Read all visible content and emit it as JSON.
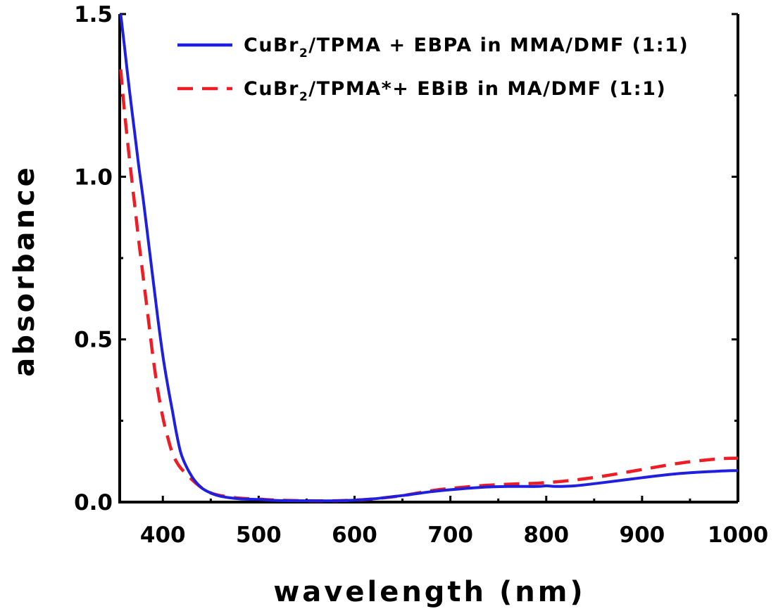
{
  "chart_data": {
    "type": "line",
    "xlabel": "wavelength (nm)",
    "ylabel": "absorbance",
    "xlim": [
      355,
      1000
    ],
    "ylim": [
      0,
      1.5
    ],
    "xticks": [
      400,
      500,
      600,
      700,
      800,
      900,
      1000
    ],
    "xtick_labels": [
      "400",
      "500",
      "600",
      "700",
      "800",
      "900",
      "1000"
    ],
    "yticks": [
      0.0,
      0.5,
      1.0,
      1.5
    ],
    "ytick_labels": [
      "0.0",
      "0.5",
      "1.0",
      "1.5"
    ],
    "grid": false,
    "legend_position": "top-right",
    "series": [
      {
        "name_main": "CuBr",
        "name_sub": "2",
        "name_rest": "/TPMA + EBPA in MMA/DMF (1:1)",
        "color": "#1f1fe0",
        "style": "solid",
        "x": [
          356,
          360,
          365,
          370,
          375,
          380,
          385,
          390,
          395,
          400,
          405,
          410,
          415,
          420,
          430,
          440,
          450,
          460,
          480,
          500,
          520,
          550,
          580,
          600,
          620,
          650,
          680,
          700,
          730,
          760,
          790,
          800,
          810,
          830,
          860,
          900,
          940,
          980,
          1000
        ],
        "y": [
          1.5,
          1.4,
          1.27,
          1.15,
          1.03,
          0.92,
          0.8,
          0.68,
          0.56,
          0.45,
          0.36,
          0.28,
          0.2,
          0.14,
          0.08,
          0.045,
          0.028,
          0.018,
          0.01,
          0.008,
          0.005,
          0.004,
          0.004,
          0.006,
          0.01,
          0.02,
          0.032,
          0.038,
          0.045,
          0.048,
          0.048,
          0.05,
          0.048,
          0.05,
          0.06,
          0.075,
          0.088,
          0.095,
          0.097
        ]
      },
      {
        "name_main": "CuBr",
        "name_sub": "2",
        "name_rest": "/TPMA*+ EBiB in MA/DMF (1:1)",
        "color": "#ee1c24",
        "style": "dashed",
        "x": [
          356,
          360,
          365,
          370,
          375,
          380,
          385,
          390,
          395,
          400,
          405,
          410,
          415,
          420,
          430,
          440,
          450,
          460,
          480,
          500,
          520,
          550,
          580,
          600,
          620,
          650,
          680,
          700,
          730,
          760,
          790,
          800,
          810,
          830,
          860,
          900,
          940,
          980,
          1000
        ],
        "y": [
          1.33,
          1.2,
          1.06,
          0.93,
          0.8,
          0.68,
          0.56,
          0.44,
          0.34,
          0.26,
          0.2,
          0.15,
          0.12,
          0.1,
          0.07,
          0.045,
          0.028,
          0.02,
          0.012,
          0.009,
          0.006,
          0.004,
          0.004,
          0.006,
          0.01,
          0.02,
          0.035,
          0.042,
          0.05,
          0.055,
          0.058,
          0.06,
          0.062,
          0.068,
          0.08,
          0.1,
          0.12,
          0.133,
          0.135
        ]
      }
    ]
  }
}
